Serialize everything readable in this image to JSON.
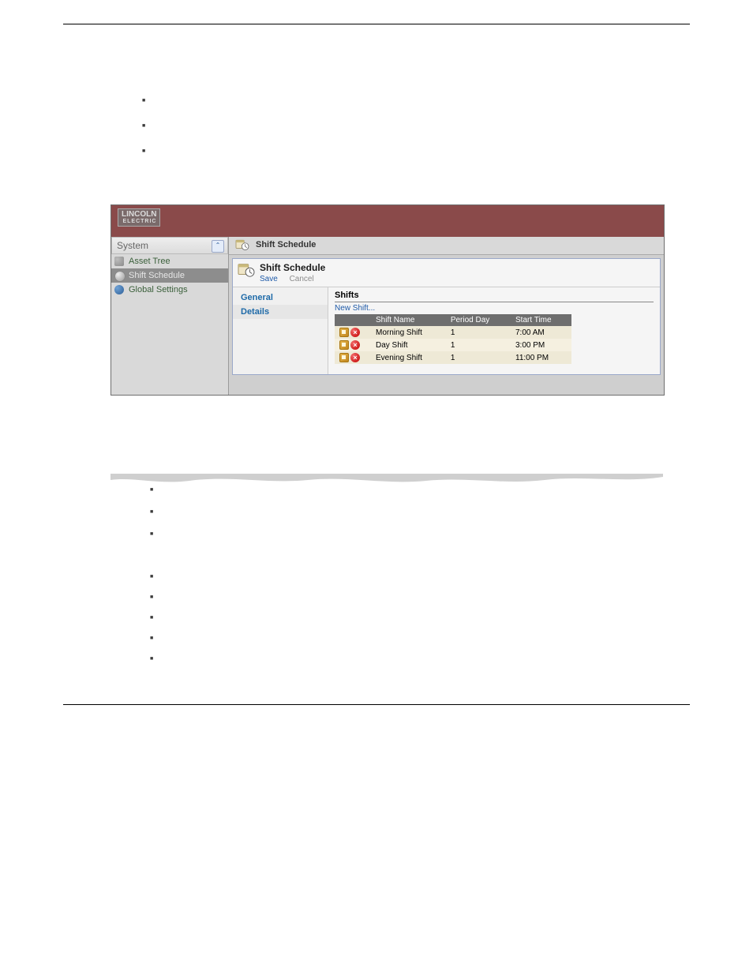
{
  "ui": {
    "logo": {
      "line1": "LINCOLN",
      "line2": "ELECTRIC"
    },
    "sidebar": {
      "header": "System",
      "items": [
        {
          "label": "Asset Tree",
          "selected": false,
          "iconClass": "mini-asset"
        },
        {
          "label": "Shift Schedule",
          "selected": true,
          "iconClass": "mini-clock"
        },
        {
          "label": "Global Settings",
          "selected": false,
          "iconClass": "mini-globe"
        }
      ]
    },
    "breadcrumb": "Shift Schedule",
    "panel": {
      "title": "Shift Schedule",
      "save": "Save",
      "cancel": "Cancel"
    },
    "subnav": [
      {
        "label": "General",
        "active": false
      },
      {
        "label": "Details",
        "active": true
      }
    ],
    "detail": {
      "heading": "Shifts",
      "newshift": "New Shift...",
      "cols": {
        "name": "Shift Name",
        "day": "Period Day",
        "time": "Start Time"
      },
      "rows": [
        {
          "name": "Morning Shift",
          "day": "1",
          "time": "7:00 AM"
        },
        {
          "name": "Day Shift",
          "day": "1",
          "time": "3:00 PM"
        },
        {
          "name": "Evening Shift",
          "day": "1",
          "time": "11:00 PM"
        }
      ]
    }
  },
  "colors": {
    "header_bg": "#8a4a4a",
    "sidebar_bg": "#d9d9d9",
    "selected_bg": "#8d8d8d",
    "link": "#1e5aa8",
    "table_header": "#6e6e6e",
    "row_bg": "#eee9d6",
    "row_alt": "#f5f0e0"
  }
}
